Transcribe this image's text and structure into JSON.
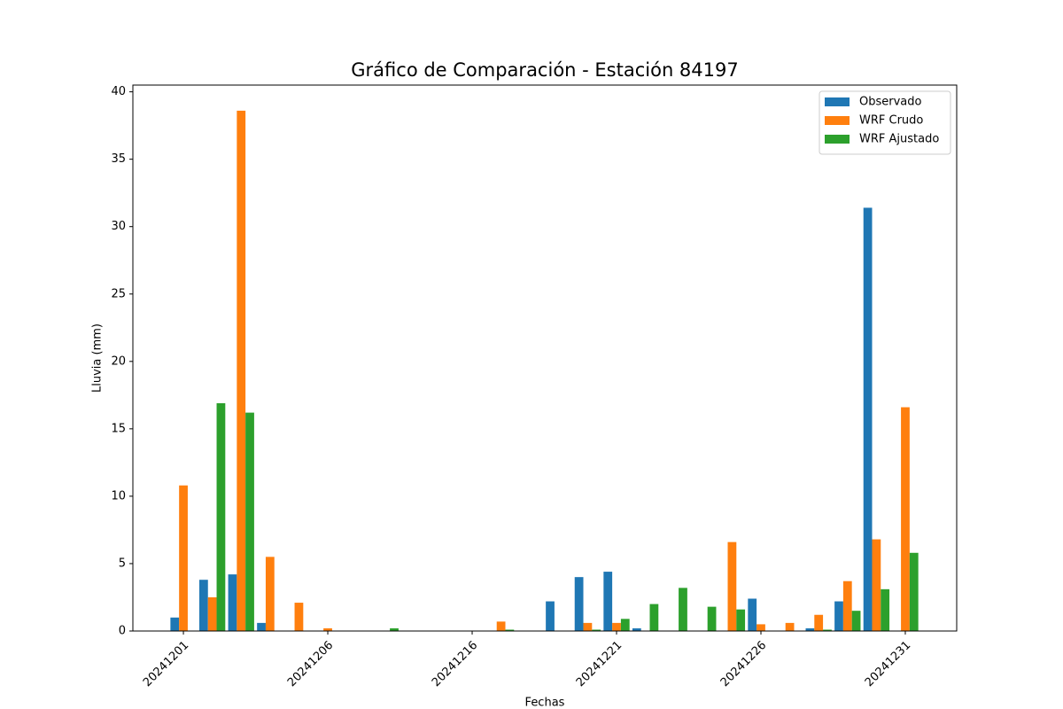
{
  "chart_data": {
    "type": "bar",
    "title": "Gráfico de Comparación - Estación 84197",
    "x_label": "Fechas",
    "y_label": "Lluvia (mm)",
    "categories": [
      "20241201",
      null,
      null,
      null,
      null,
      "20241206",
      null,
      null,
      null,
      null,
      "20241216",
      null,
      null,
      null,
      null,
      "20241221",
      null,
      null,
      null,
      null,
      "20241226",
      null,
      null,
      null,
      null,
      "20241231"
    ],
    "series": [
      {
        "name": "Observado",
        "color": "#1f77b4",
        "values": [
          1.0,
          3.8,
          4.2,
          0.6,
          0,
          0,
          0,
          0,
          0,
          0,
          0,
          0,
          0,
          2.2,
          4.0,
          4.4,
          0.2,
          0,
          0,
          0,
          2.4,
          0,
          0.2,
          2.2,
          31.4,
          0
        ]
      },
      {
        "name": "WRF Crudo",
        "color": "#ff7f0e",
        "values": [
          10.8,
          2.5,
          38.6,
          5.5,
          2.1,
          0.2,
          0,
          0,
          0,
          0,
          0,
          0.7,
          0,
          0,
          0.6,
          0.6,
          0,
          0,
          0,
          6.6,
          0.5,
          0.6,
          1.2,
          3.7,
          6.8,
          16.6
        ]
      },
      {
        "name": "WRF Ajustado",
        "color": "#2ca02c",
        "values": [
          0,
          16.9,
          16.2,
          0,
          0,
          0,
          0,
          0.2,
          0,
          0,
          0,
          0.1,
          0,
          0,
          0.1,
          0.9,
          2.0,
          3.2,
          1.8,
          1.6,
          0,
          0,
          0.1,
          1.5,
          3.1,
          5.8
        ]
      }
    ],
    "ylim": [
      0,
      40.5
    ],
    "yticks": [
      0,
      5,
      10,
      15,
      20,
      25,
      30,
      35,
      40
    ],
    "legend": "upper right"
  }
}
